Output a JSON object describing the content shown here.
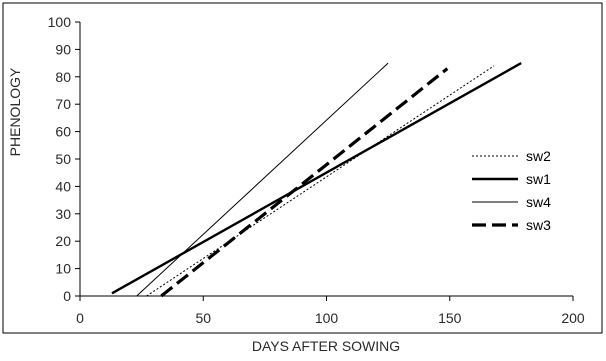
{
  "chart_data": {
    "type": "line",
    "title": "",
    "xlabel": "DAYS AFTER SOWING",
    "ylabel": "PHENOLOGY",
    "xlim": [
      0,
      200
    ],
    "ylim": [
      0,
      100
    ],
    "xticks": [
      0,
      50,
      100,
      150,
      200
    ],
    "yticks": [
      0,
      10,
      20,
      30,
      40,
      50,
      60,
      70,
      80,
      90,
      100
    ],
    "grid": false,
    "legend_position": "right",
    "series": [
      {
        "name": "sw2",
        "style": "dotted",
        "weight": "thin",
        "color": "#000000",
        "x": [
          27,
          168
        ],
        "y": [
          0,
          84
        ]
      },
      {
        "name": "sw1",
        "style": "solid",
        "weight": "thick",
        "color": "#000000",
        "x": [
          13,
          179
        ],
        "y": [
          1,
          85
        ]
      },
      {
        "name": "sw4",
        "style": "solid",
        "weight": "thin",
        "color": "#000000",
        "x": [
          23,
          125
        ],
        "y": [
          0,
          85
        ]
      },
      {
        "name": "sw3",
        "style": "dashed",
        "weight": "thick",
        "color": "#000000",
        "x": [
          33,
          149
        ],
        "y": [
          0,
          83
        ]
      }
    ]
  }
}
